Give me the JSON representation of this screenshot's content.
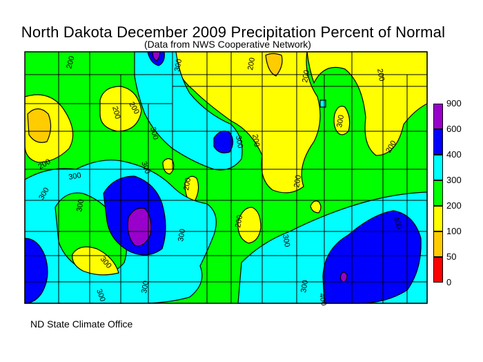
{
  "title": "North Dakota December 2009 Precipitation Percent of Normal",
  "subtitle": "(Data from NWS Cooperative Network)",
  "credit": "ND State Climate Office",
  "legend": {
    "bins": [
      {
        "label": "900",
        "color": "#9900cc"
      },
      {
        "label": "600",
        "color": "#0000ff"
      },
      {
        "label": "400",
        "color": "#00ffff"
      },
      {
        "label": "300",
        "color": "#00ff00"
      },
      {
        "label": "200",
        "color": "#ffff00"
      },
      {
        "label": "100",
        "color": "#ffcc00"
      },
      {
        "label": "50",
        "color": "#ff0000"
      },
      {
        "label": "0",
        "color": "#ffffff"
      }
    ]
  },
  "contour_labels": [
    "200",
    "200",
    "300",
    "200",
    "200",
    "200",
    "200",
    "200",
    "300",
    "300",
    "200",
    "300",
    "200",
    "300",
    "200",
    "300",
    "300",
    "200",
    "300",
    "300",
    "300",
    "300",
    "400",
    "400",
    "300",
    "300",
    "200",
    "300"
  ]
}
